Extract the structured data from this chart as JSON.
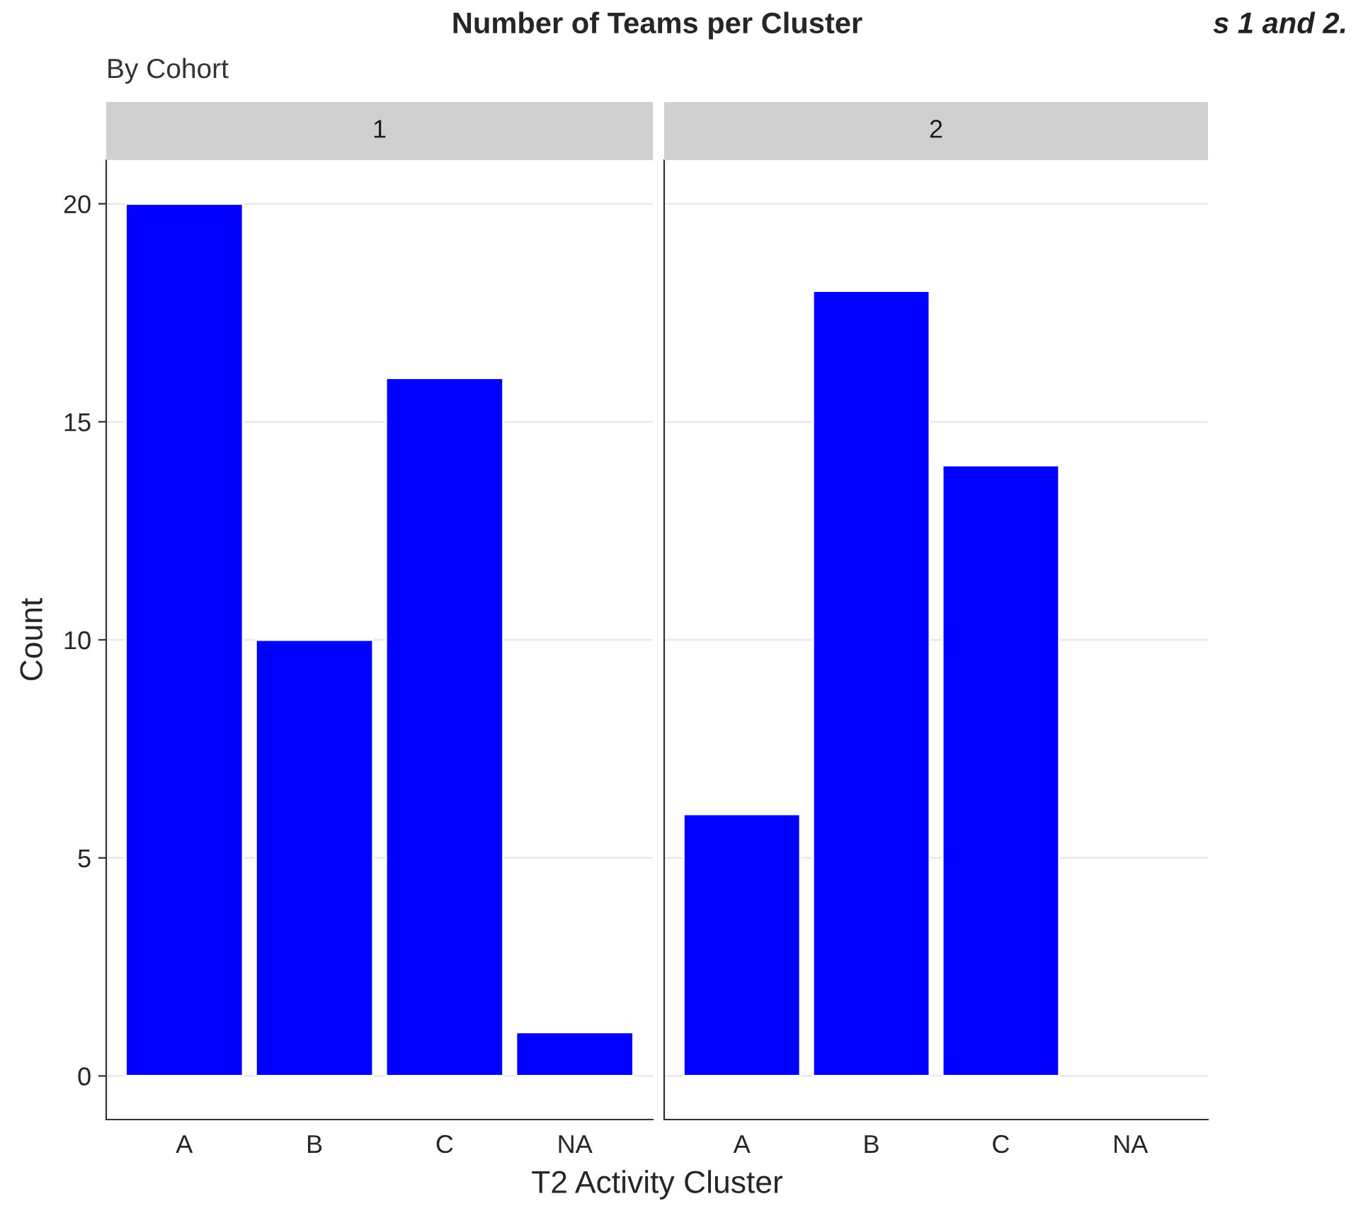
{
  "chart_data": [
    {
      "type": "bar",
      "title": "Number of Teams per Cluster",
      "subtitle": "By Cohort",
      "xlabel": "T2 Activity Cluster",
      "ylabel": "Count",
      "annotations": [
        "1"
      ],
      "categories": [
        "A",
        "B",
        "C",
        "NA"
      ],
      "values": [
        20,
        10,
        16,
        1
      ],
      "color": "#0000ff",
      "ylim": [
        -1,
        21
      ],
      "yticks": [
        0,
        5,
        10,
        15,
        20
      ],
      "grid": "y"
    },
    {
      "type": "bar",
      "annotations": [
        "2",
        "s 1 and 2."
      ],
      "categories": [
        "A",
        "B",
        "C",
        "NA"
      ],
      "values": [
        6,
        18,
        14,
        null
      ],
      "color": "#0000ff",
      "ylim": [
        -1,
        21
      ],
      "yticks": [
        0,
        5,
        10,
        15,
        20
      ],
      "grid": "y",
      "tick_labels": "x"
    }
  ]
}
